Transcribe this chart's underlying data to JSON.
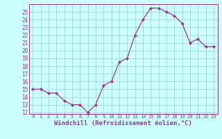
{
  "x": [
    0,
    1,
    2,
    3,
    4,
    5,
    6,
    7,
    8,
    9,
    10,
    11,
    12,
    13,
    14,
    15,
    16,
    17,
    18,
    19,
    20,
    21,
    22,
    23
  ],
  "y": [
    15,
    15,
    14.5,
    14.5,
    13.5,
    13,
    13,
    12,
    13,
    15.5,
    16,
    18.5,
    19,
    22,
    24,
    25.5,
    25.5,
    25,
    24.5,
    23.5,
    21,
    21.5,
    20.5,
    20.5
  ],
  "ylim": [
    11.8,
    26.0
  ],
  "yticks": [
    12,
    13,
    14,
    15,
    16,
    17,
    18,
    19,
    20,
    21,
    22,
    23,
    24,
    25
  ],
  "xticks": [
    0,
    1,
    2,
    3,
    4,
    5,
    6,
    7,
    8,
    9,
    10,
    11,
    12,
    13,
    14,
    15,
    16,
    17,
    18,
    19,
    20,
    21,
    22,
    23
  ],
  "xlabel": "Windchill (Refroidissement éolien,°C)",
  "line_color": "#993399",
  "marker": "D",
  "marker_size": 2.0,
  "bg_color": "#ccffff",
  "grid_color": "#99cccc",
  "tick_color": "#993399",
  "xlabel_color": "#993399",
  "ytick_fontsize": 5.5,
  "xtick_fontsize": 5.0,
  "xlabel_fontsize": 6.5,
  "spine_color": "#993399",
  "linewidth": 0.9
}
